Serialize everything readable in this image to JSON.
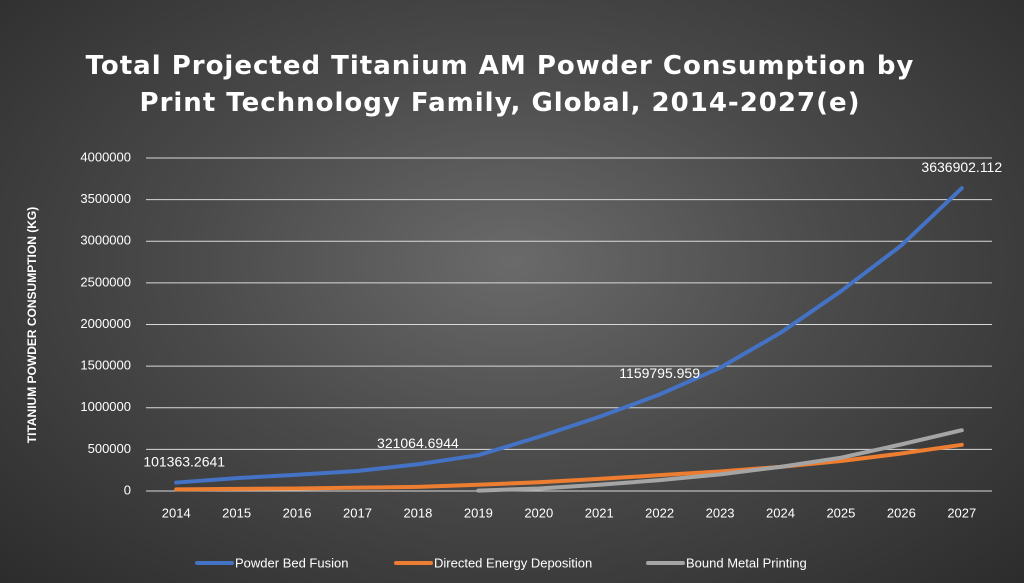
{
  "chart_data": {
    "type": "line",
    "title": "Total Projected Titanium AM Powder Consumption by\nPrint Technology Family, Global, 2014-2027(e)",
    "y_label": "TITANIUM  POWDER CONSUMPTION  (KG)",
    "categories": [
      "2014",
      "2015",
      "2016",
      "2017",
      "2018",
      "2019",
      "2020",
      "2021",
      "2022",
      "2023",
      "2024",
      "2025",
      "2026",
      "2027"
    ],
    "series": [
      {
        "name": "Powder Bed Fusion",
        "color": "#4472c4",
        "values": [
          101363.2641,
          155000,
          195000,
          240000,
          321064.6944,
          430000,
          650000,
          890000,
          1159795.959,
          1480000,
          1900000,
          2400000,
          2950000,
          3636902.112
        ],
        "value_labels": [
          "101363.2641",
          null,
          null,
          null,
          "321064.6944",
          null,
          null,
          null,
          "1159795.959",
          null,
          null,
          null,
          null,
          "3636902.112"
        ]
      },
      {
        "name": "Directed Energy Deposition",
        "color": "#ed7d31",
        "values": [
          20000,
          25000,
          30000,
          40000,
          50000,
          75000,
          105000,
          145000,
          190000,
          235000,
          290000,
          360000,
          450000,
          555000
        ]
      },
      {
        "name": "Bound Metal Printing",
        "color": "#a5a5a5",
        "values": [
          null,
          null,
          null,
          null,
          null,
          5000,
          30000,
          75000,
          130000,
          200000,
          290000,
          400000,
          560000,
          730000
        ]
      }
    ],
    "ylim": [
      0,
      4000000
    ],
    "yticks": [
      0,
      500000,
      1000000,
      1500000,
      2000000,
      2500000,
      3000000,
      3500000,
      4000000
    ],
    "grid": true,
    "legend": "bottom"
  }
}
